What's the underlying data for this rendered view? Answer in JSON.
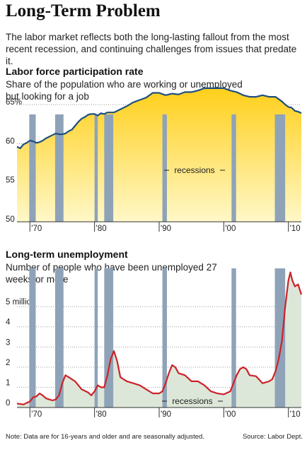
{
  "title": "Long-Term Problem",
  "subtitle": "The labor market reflects both the long-lasting fallout from the most recent recession, and continuing challenges from issues that predate it.",
  "note": "Note: Data are for 16-years and older and are seasonally adjusted.",
  "source": "Source: Labor Dept.",
  "colors": {
    "line": "#1f4f7f",
    "line2": "#cc2229",
    "bar": "#8fa3b8",
    "fill_top": "#fff7c2",
    "fill_bottom": "#ffcf1a",
    "fill2": "#dde7d9"
  },
  "chart_data": [
    {
      "type": "area",
      "title": "Labor force participation rate",
      "subtitle": "Share of the population who are working or unemployed but looking for a job",
      "ylim": [
        50,
        67
      ],
      "xlim": [
        1968,
        2012
      ],
      "y_ticks": [
        "65%",
        "60",
        "55",
        "50"
      ],
      "y_tick_values": [
        65,
        60,
        55,
        50
      ],
      "x_ticks": [
        "'70",
        "'80",
        "'90",
        "'00",
        "'10"
      ],
      "x_tick_values": [
        1970,
        1980,
        1990,
        2000,
        2010
      ],
      "annotation": "recessions",
      "recessions": [
        [
          1969.9,
          1970.9
        ],
        [
          1973.9,
          1975.2
        ],
        [
          1980.0,
          1980.5
        ],
        [
          1981.5,
          1982.9
        ],
        [
          1990.5,
          1991.2
        ],
        [
          2001.2,
          2001.9
        ],
        [
          2007.9,
          2009.5
        ]
      ],
      "x": [
        1968.0,
        1968.5,
        1969.0,
        1969.5,
        1970.0,
        1970.5,
        1971.0,
        1971.5,
        1972.0,
        1972.5,
        1973.0,
        1973.5,
        1974.0,
        1974.5,
        1975.0,
        1975.5,
        1976.0,
        1976.5,
        1977.0,
        1977.5,
        1978.0,
        1978.5,
        1979.0,
        1979.5,
        1980.0,
        1980.5,
        1981.0,
        1981.5,
        1982.0,
        1982.5,
        1983.0,
        1983.5,
        1984.0,
        1985.0,
        1986.0,
        1987.0,
        1988.0,
        1989.0,
        1990.0,
        1991.0,
        1992.0,
        1993.0,
        1994.0,
        1995.0,
        1996.0,
        1997.0,
        1998.0,
        1999.0,
        2000.0,
        2001.0,
        2002.0,
        2003.0,
        2004.0,
        2005.0,
        2006.0,
        2007.0,
        2008.0,
        2009.0,
        2009.5,
        2010.0,
        2010.5,
        2011.0,
        2011.5,
        2012.0
      ],
      "values": [
        59.6,
        59.4,
        59.9,
        60.1,
        60.4,
        60.3,
        60.1,
        60.2,
        60.4,
        60.7,
        60.9,
        61.1,
        61.3,
        61.2,
        61.2,
        61.3,
        61.6,
        61.8,
        62.3,
        62.8,
        63.2,
        63.4,
        63.7,
        63.8,
        63.8,
        63.6,
        63.9,
        63.8,
        64.0,
        64.0,
        64.0,
        64.2,
        64.4,
        64.8,
        65.3,
        65.6,
        65.9,
        66.5,
        66.5,
        66.2,
        66.4,
        66.3,
        66.6,
        66.6,
        66.8,
        67.1,
        67.1,
        67.1,
        67.1,
        66.8,
        66.6,
        66.2,
        66.0,
        66.0,
        66.2,
        66.0,
        66.0,
        65.4,
        65.0,
        64.7,
        64.6,
        64.2,
        64.1,
        63.9
      ]
    },
    {
      "type": "area",
      "title": "Long-term unemployment",
      "subtitle": "Number of people who have been unemployed 27 weeks or more",
      "ylim": [
        0,
        7
      ],
      "xlim": [
        1968,
        2012
      ],
      "y_ticks": [
        "5 million",
        "4",
        "3",
        "2",
        "1",
        "0"
      ],
      "y_tick_values": [
        5,
        4,
        3,
        2,
        1,
        0
      ],
      "x_ticks": [
        "'70",
        "'80",
        "'90",
        "'00",
        "'10"
      ],
      "x_tick_values": [
        1970,
        1980,
        1990,
        2000,
        2010
      ],
      "annotation": "recessions",
      "recessions": [
        [
          1969.9,
          1970.9
        ],
        [
          1973.9,
          1975.2
        ],
        [
          1980.0,
          1980.5
        ],
        [
          1981.5,
          1982.9
        ],
        [
          1990.5,
          1991.2
        ],
        [
          2001.2,
          2001.9
        ],
        [
          2007.9,
          2009.5
        ]
      ],
      "x": [
        1968.0,
        1969.0,
        1970.0,
        1970.5,
        1971.0,
        1971.5,
        1972.0,
        1972.5,
        1973.0,
        1973.5,
        1974.0,
        1974.5,
        1975.0,
        1975.5,
        1976.0,
        1977.0,
        1978.0,
        1979.0,
        1979.5,
        1980.0,
        1980.5,
        1981.0,
        1981.5,
        1982.0,
        1982.5,
        1983.0,
        1983.5,
        1984.0,
        1985.0,
        1986.0,
        1987.0,
        1988.0,
        1989.0,
        1990.0,
        1990.5,
        1991.0,
        1991.5,
        1992.0,
        1992.5,
        1993.0,
        1994.0,
        1995.0,
        1996.0,
        1997.0,
        1998.0,
        1999.0,
        2000.0,
        2001.0,
        2002.0,
        2002.5,
        2003.0,
        2003.5,
        2004.0,
        2005.0,
        2006.0,
        2007.0,
        2007.5,
        2008.0,
        2008.5,
        2009.0,
        2009.5,
        2010.0,
        2010.3,
        2010.6,
        2011.0,
        2011.5,
        2012.0
      ],
      "values": [
        0.2,
        0.15,
        0.3,
        0.5,
        0.55,
        0.7,
        0.6,
        0.45,
        0.4,
        0.35,
        0.4,
        0.6,
        1.2,
        1.6,
        1.5,
        1.3,
        0.9,
        0.75,
        0.6,
        0.8,
        1.1,
        1.0,
        1.0,
        1.6,
        2.4,
        2.8,
        2.3,
        1.5,
        1.3,
        1.2,
        1.1,
        0.9,
        0.7,
        0.7,
        0.8,
        1.2,
        1.7,
        2.1,
        2.0,
        1.7,
        1.6,
        1.3,
        1.3,
        1.1,
        0.8,
        0.7,
        0.65,
        0.8,
        1.6,
        1.9,
        2.0,
        1.9,
        1.6,
        1.55,
        1.2,
        1.3,
        1.4,
        1.8,
        2.4,
        3.3,
        5.0,
        6.3,
        6.7,
        6.3,
        6.0,
        6.1,
        5.6
      ]
    }
  ]
}
